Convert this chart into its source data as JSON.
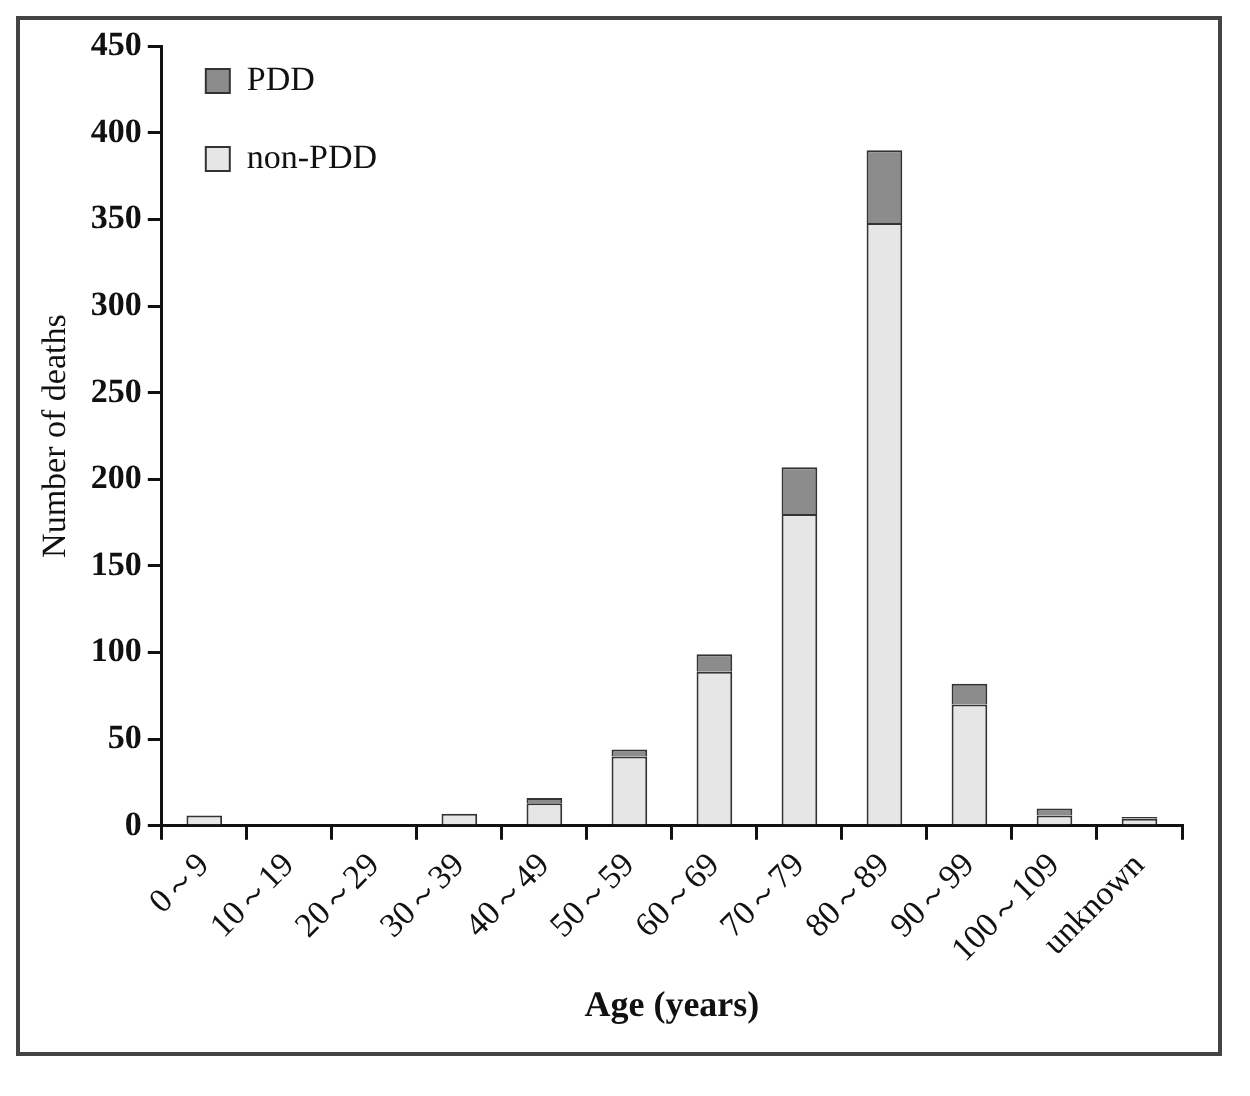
{
  "chart_data": {
    "type": "bar",
    "stacked": true,
    "xlabel": "Age (years)",
    "ylabel": "Number of deaths",
    "categories": [
      "0～9",
      "10～19",
      "20～29",
      "30～39",
      "40～49",
      "50～59",
      "60～69",
      "70～79",
      "80～89",
      "90～99",
      "100～109",
      "unknown"
    ],
    "series": [
      {
        "name": "non-PDD",
        "color": "#e6e6e6",
        "values": [
          6,
          1,
          0,
          7,
          13,
          40,
          89,
          180,
          348,
          70,
          6,
          4
        ]
      },
      {
        "name": "PDD",
        "color": "#8c8c8c",
        "values": [
          0,
          0,
          0,
          0,
          3,
          4,
          10,
          27,
          42,
          12,
          4,
          1
        ]
      }
    ],
    "ylim": [
      0,
      450
    ],
    "yticks": [
      0,
      50,
      100,
      150,
      200,
      250,
      300,
      350,
      400,
      450
    ],
    "grid": false,
    "legend": "top left"
  }
}
